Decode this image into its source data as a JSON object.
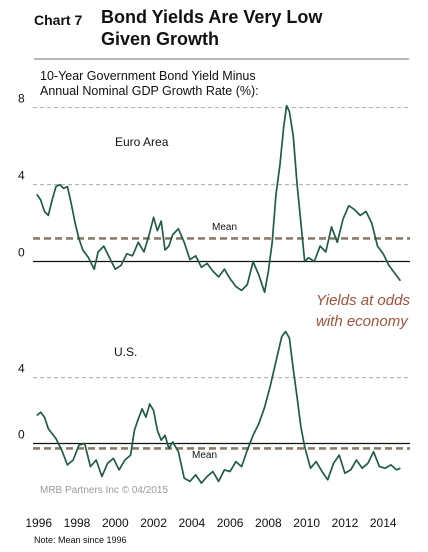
{
  "header": {
    "chart_label": "Chart 7",
    "title_line1": "Bond Yields Are Very Low",
    "title_line2": "Given Growth"
  },
  "annotation": {
    "line1": "Yields at odds",
    "line2": "with economy"
  },
  "source": "MRB Partners Inc © 04/2015",
  "note": "Note: Mean since 1996",
  "colors": {
    "series": "#1f5e44",
    "mean": "#8a7d6a",
    "grid": "#a9a9a9",
    "annotation": "#a0523a"
  },
  "chart_data": {
    "type": "line",
    "title": "10-Year Government Bond Yield Minus Annual Nominal GDP Growth Rate (%):",
    "subtitle_line1": "10-Year Government Bond Yield Minus",
    "subtitle_line2": "Annual Nominal GDP Growth Rate (%):",
    "x_ticks": [
      "1996",
      "1998",
      "2000",
      "2002",
      "2004",
      "2006",
      "2008",
      "2010",
      "2012",
      "2014"
    ],
    "xlim": [
      1995.7,
      2015.4
    ],
    "grid": "horizontal dashed",
    "panels": [
      {
        "name": "Euro Area",
        "y_ticks": [
          "8",
          "4",
          "0"
        ],
        "ylim": [
          -2,
          8.5
        ],
        "mean_label": "Mean",
        "mean": 1.2,
        "x": [
          1995.9,
          1996.1,
          1996.3,
          1996.5,
          1996.7,
          1996.9,
          1997.1,
          1997.3,
          1997.5,
          1997.7,
          1997.9,
          1998.1,
          1998.3,
          1998.6,
          1998.9,
          1999.1,
          1999.4,
          1999.7,
          2000.0,
          2000.3,
          2000.6,
          2000.9,
          2001.2,
          2001.5,
          2001.8,
          2002.0,
          2002.2,
          2002.4,
          2002.6,
          2002.8,
          2003.0,
          2003.3,
          2003.6,
          2003.9,
          2004.2,
          2004.5,
          2004.8,
          2005.1,
          2005.4,
          2005.7,
          2006.0,
          2006.3,
          2006.6,
          2006.9,
          2007.2,
          2007.5,
          2007.8,
          2008.0,
          2008.2,
          2008.4,
          2008.6,
          2008.8,
          2008.95,
          2009.1,
          2009.3,
          2009.5,
          2009.7,
          2009.9,
          2010.1,
          2010.4,
          2010.7,
          2011.0,
          2011.3,
          2011.6,
          2011.9,
          2012.2,
          2012.5,
          2012.8,
          2013.1,
          2013.4,
          2013.7,
          2014.0,
          2014.3,
          2014.6,
          2014.9
        ],
        "y": [
          3.5,
          3.2,
          2.6,
          2.4,
          3.2,
          3.9,
          4.0,
          3.8,
          3.9,
          3.0,
          2.0,
          1.2,
          0.6,
          0.2,
          -0.4,
          0.5,
          0.8,
          0.2,
          -0.4,
          -0.2,
          0.4,
          0.3,
          1.0,
          0.5,
          1.5,
          2.3,
          1.6,
          2.1,
          0.6,
          0.8,
          1.4,
          1.7,
          1.0,
          0.1,
          0.3,
          -0.3,
          -0.1,
          -0.5,
          -0.8,
          -0.4,
          -0.9,
          -1.3,
          -1.5,
          -1.2,
          0.0,
          -0.7,
          -1.6,
          -0.5,
          1.0,
          3.5,
          5.0,
          7.0,
          8.1,
          7.8,
          6.5,
          4.0,
          2.0,
          0.0,
          0.2,
          0.0,
          0.8,
          0.5,
          1.8,
          1.0,
          2.2,
          2.9,
          2.7,
          2.4,
          2.6,
          2.0,
          0.8,
          0.4,
          -0.2,
          -0.6,
          -1.0
        ]
      },
      {
        "name": "U.S.",
        "y_ticks": [
          "4",
          "0"
        ],
        "ylim": [
          -2.7,
          7.5
        ],
        "mean_label": "Mean",
        "mean": -0.3,
        "x": [
          1995.9,
          1996.1,
          1996.3,
          1996.5,
          1996.7,
          1996.9,
          1997.2,
          1997.5,
          1997.8,
          1998.1,
          1998.4,
          1998.7,
          1999.0,
          1999.3,
          1999.6,
          1999.9,
          2000.2,
          2000.5,
          2000.8,
          2001.0,
          2001.2,
          2001.4,
          2001.6,
          2001.8,
          2002.0,
          2002.2,
          2002.4,
          2002.6,
          2002.8,
          2003.0,
          2003.3,
          2003.6,
          2003.9,
          2004.2,
          2004.5,
          2004.8,
          2005.1,
          2005.4,
          2005.7,
          2006.0,
          2006.3,
          2006.6,
          2006.9,
          2007.2,
          2007.5,
          2007.8,
          2008.1,
          2008.4,
          2008.7,
          2008.9,
          2009.1,
          2009.3,
          2009.5,
          2009.7,
          2009.9,
          2010.2,
          2010.5,
          2010.8,
          2011.1,
          2011.4,
          2011.7,
          2012.0,
          2012.3,
          2012.6,
          2012.9,
          2013.2,
          2013.5,
          2013.8,
          2014.1,
          2014.4,
          2014.7,
          2014.9
        ],
        "y": [
          1.7,
          1.9,
          1.6,
          0.9,
          0.6,
          0.3,
          -0.4,
          -1.3,
          -1.0,
          -0.1,
          0.0,
          -1.4,
          -1.0,
          -2.0,
          -1.2,
          -0.9,
          -1.6,
          -1.0,
          -0.7,
          0.8,
          1.5,
          2.1,
          1.6,
          2.4,
          2.0,
          0.8,
          0.2,
          0.5,
          -0.3,
          0.1,
          -0.5,
          -2.1,
          -2.3,
          -1.9,
          -2.4,
          -2.0,
          -1.7,
          -2.3,
          -1.6,
          -1.7,
          -1.1,
          -1.4,
          -0.4,
          0.5,
          1.2,
          2.2,
          3.5,
          5.0,
          6.5,
          6.8,
          6.4,
          4.5,
          2.8,
          1.0,
          -0.2,
          -1.5,
          -1.1,
          -1.7,
          -2.2,
          -1.2,
          -0.7,
          -1.8,
          -1.6,
          -1.0,
          -1.5,
          -1.2,
          -0.5,
          -1.4,
          -1.5,
          -1.3,
          -1.6,
          -1.5
        ]
      }
    ]
  }
}
